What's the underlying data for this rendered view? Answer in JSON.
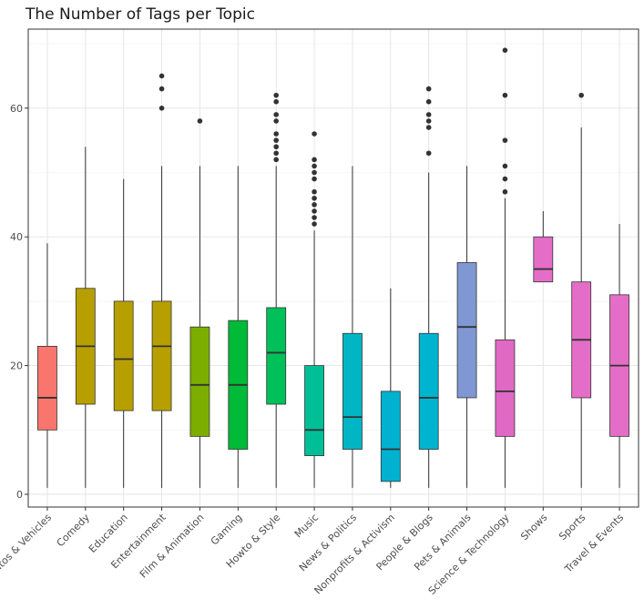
{
  "chart_data": {
    "type": "boxplot",
    "title": "The Number of Tags per Topic",
    "xlabel": "",
    "ylabel": "",
    "ylim": [
      -1,
      72
    ],
    "yticks": [
      0,
      20,
      40,
      60
    ],
    "grid": true,
    "legend": "none",
    "categories": [
      "Autos & Vehicles",
      "Comedy",
      "Education",
      "Entertainment",
      "Film & Animation",
      "Gaming",
      "Howto & Style",
      "Music",
      "News & Politics",
      "Nonprofits & Activism",
      "People & Blogs",
      "Pets & Animals",
      "Science & Technology",
      "Shows",
      "Sports",
      "Travel & Events"
    ],
    "boxes": [
      {
        "whisker_low": 1,
        "q1": 10,
        "median": 15,
        "q3": 23,
        "whisker_high": 39,
        "outliers": [],
        "color": "#f8766d"
      },
      {
        "whisker_low": 1,
        "q1": 14,
        "median": 23,
        "q3": 32,
        "whisker_high": 54,
        "outliers": [],
        "color": "#b79f00"
      },
      {
        "whisker_low": 1,
        "q1": 13,
        "median": 21,
        "q3": 30,
        "whisker_high": 49,
        "outliers": [],
        "color": "#b79f00"
      },
      {
        "whisker_low": 1,
        "q1": 13,
        "median": 23,
        "q3": 30,
        "whisker_high": 51,
        "outliers": [
          60,
          63,
          65
        ],
        "color": "#b79f00"
      },
      {
        "whisker_low": 1,
        "q1": 9,
        "median": 17,
        "q3": 26,
        "whisker_high": 51,
        "outliers": [
          58
        ],
        "color": "#7cae00"
      },
      {
        "whisker_low": 1,
        "q1": 7,
        "median": 17,
        "q3": 27,
        "whisker_high": 51,
        "outliers": [],
        "color": "#00ba38"
      },
      {
        "whisker_low": 1,
        "q1": 14,
        "median": 22,
        "q3": 29,
        "whisker_high": 51,
        "outliers": [
          52,
          53,
          54,
          55,
          56,
          58,
          59,
          61,
          62
        ],
        "color": "#00c05a"
      },
      {
        "whisker_low": 1,
        "q1": 6,
        "median": 10,
        "q3": 20,
        "whisker_high": 41,
        "outliers": [
          42,
          43,
          44,
          45,
          46,
          47,
          49,
          50,
          51,
          52,
          56
        ],
        "color": "#00bf96"
      },
      {
        "whisker_low": 1,
        "q1": 7,
        "median": 12,
        "q3": 25,
        "whisker_high": 51,
        "outliers": [],
        "color": "#00b6c4"
      },
      {
        "whisker_low": 1,
        "q1": 2,
        "median": 7,
        "q3": 16,
        "whisker_high": 32,
        "outliers": [],
        "color": "#00b2cf"
      },
      {
        "whisker_low": 1,
        "q1": 7,
        "median": 15,
        "q3": 25,
        "whisker_high": 50,
        "outliers": [
          53,
          57,
          58,
          59,
          61,
          63
        ],
        "color": "#00b4d0"
      },
      {
        "whisker_low": 1,
        "q1": 15,
        "median": 26,
        "q3": 36,
        "whisker_high": 51,
        "outliers": [],
        "color": "#7f97d2"
      },
      {
        "whisker_low": 1,
        "q1": 9,
        "median": 16,
        "q3": 24,
        "whisker_high": 46,
        "outliers": [
          47,
          49,
          51,
          55,
          62,
          69
        ],
        "color": "#e069c5"
      },
      {
        "whisker_low": 33,
        "q1": 33,
        "median": 35,
        "q3": 40,
        "whisker_high": 44,
        "outliers": [],
        "color": "#e46ec7"
      },
      {
        "whisker_low": 1,
        "q1": 15,
        "median": 24,
        "q3": 33,
        "whisker_high": 57,
        "outliers": [
          62
        ],
        "color": "#e46ec7"
      },
      {
        "whisker_low": 1,
        "q1": 9,
        "median": 20,
        "q3": 31,
        "whisker_high": 42,
        "outliers": [],
        "color": "#e46ec7"
      }
    ]
  }
}
